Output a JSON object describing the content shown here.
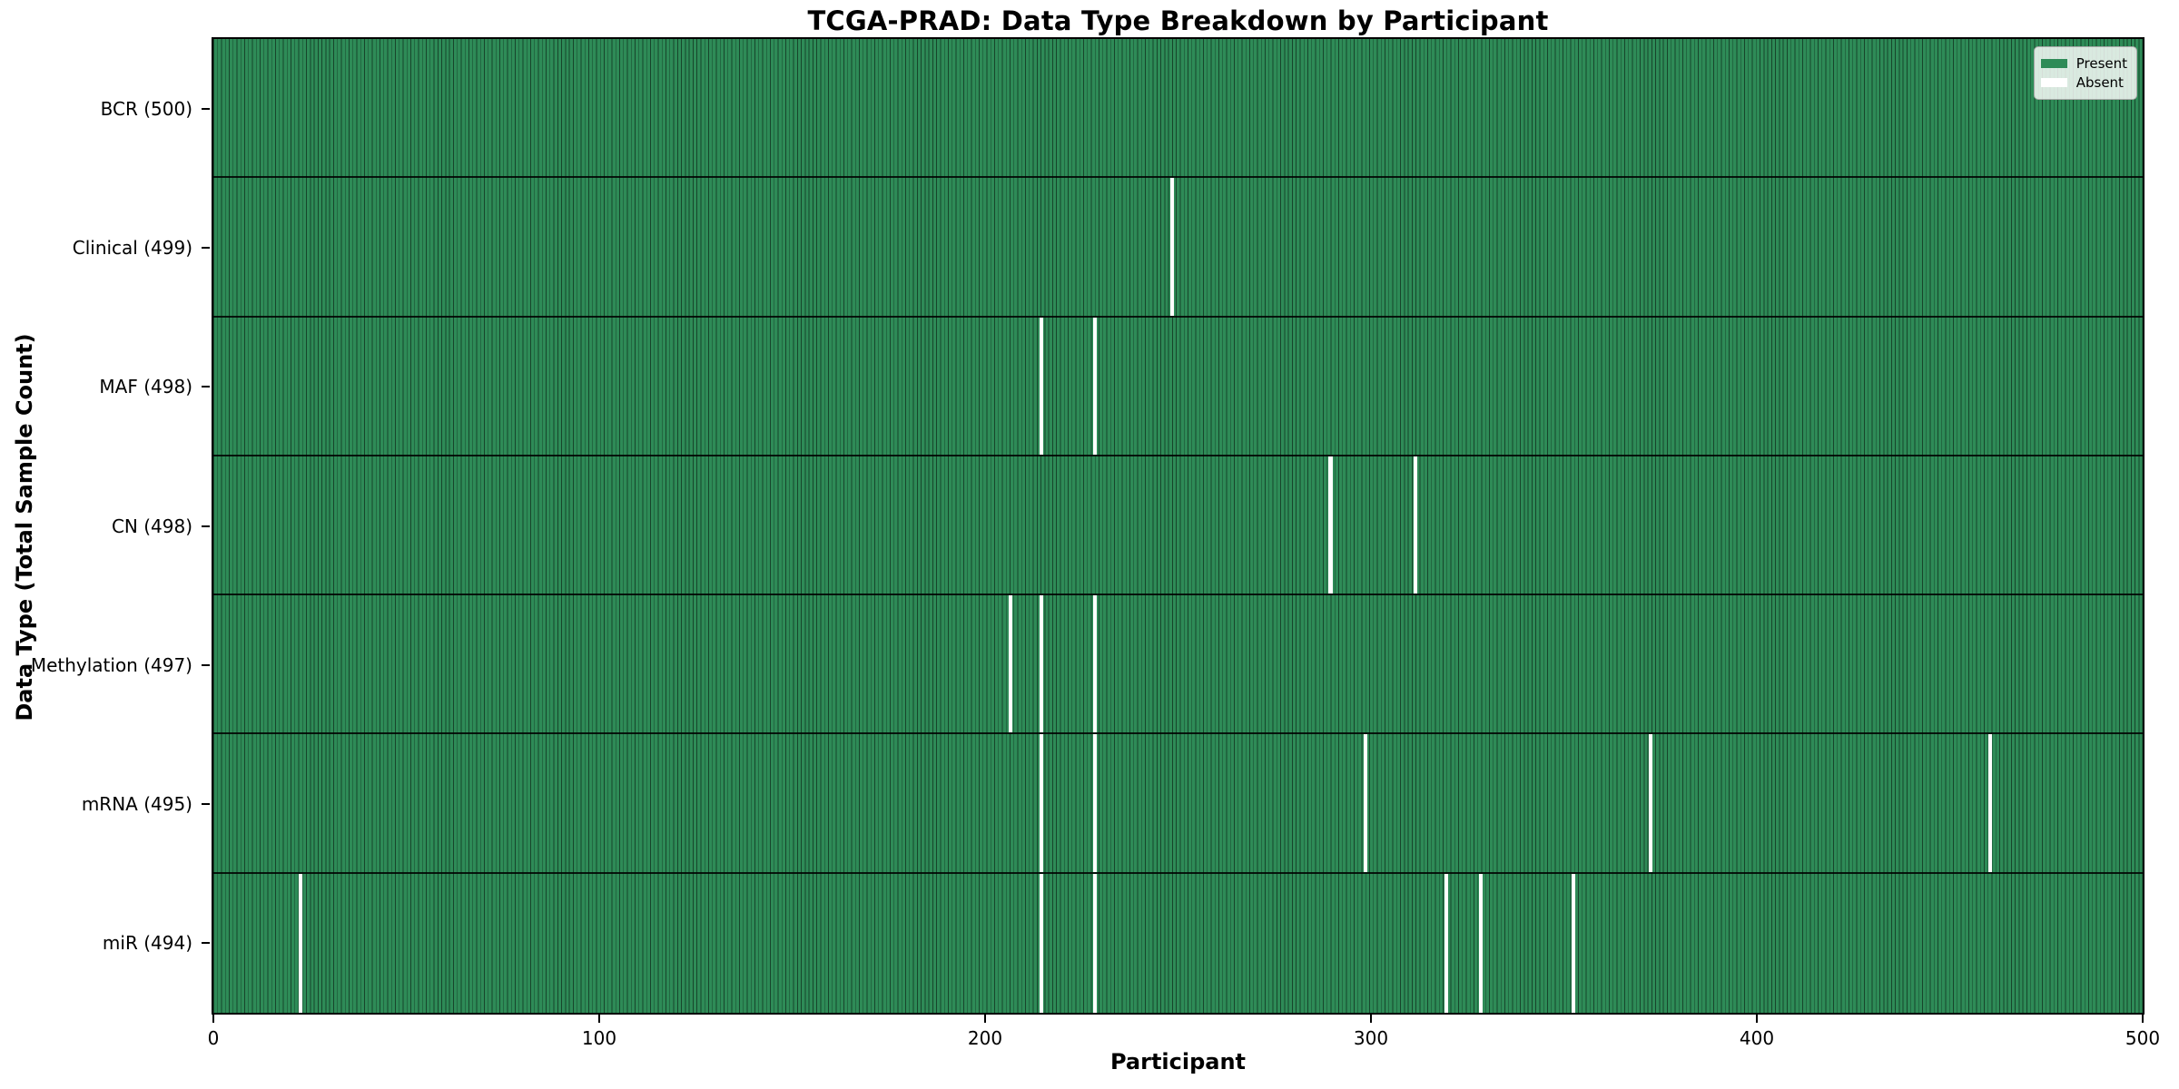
{
  "chart_data": {
    "type": "heatmap",
    "title": "TCGA-PRAD: Data Type Breakdown by Participant",
    "xlabel": "Participant",
    "ylabel": "Data Type (Total Sample Count)",
    "x_range": [
      0,
      500
    ],
    "n_participants": 500,
    "x_ticks": [
      0,
      100,
      200,
      300,
      400,
      500
    ],
    "grid": false,
    "legend_position": "upper right",
    "legend": [
      {
        "label": "Present",
        "color": "#2e8b57"
      },
      {
        "label": "Absent",
        "color": "#ffffff"
      }
    ],
    "rows": [
      {
        "name": "BCR",
        "label": "BCR (500)",
        "total": 500,
        "absent_participants": []
      },
      {
        "name": "Clinical",
        "label": "Clinical (499)",
        "total": 499,
        "absent_participants": [
          248
        ]
      },
      {
        "name": "MAF",
        "label": "MAF (498)",
        "total": 498,
        "absent_participants": [
          214,
          228
        ]
      },
      {
        "name": "CN",
        "label": "CN (498)",
        "total": 498,
        "absent_participants": [
          289,
          311
        ]
      },
      {
        "name": "Methylation",
        "label": "Methylation (497)",
        "total": 497,
        "absent_participants": [
          206,
          214,
          228
        ]
      },
      {
        "name": "mRNA",
        "label": "mRNA (495)",
        "total": 495,
        "absent_participants": [
          214,
          228,
          298,
          372,
          460
        ]
      },
      {
        "name": "miR",
        "label": "miR (494)",
        "total": 494,
        "absent_participants": [
          22,
          214,
          228,
          319,
          328,
          352
        ]
      }
    ],
    "colors": {
      "present": "#2e8b57",
      "absent": "#ffffff",
      "cell_edge": "rgba(0,0,0,0.5)",
      "row_divider": "#000000",
      "plot_border": "#000000"
    }
  }
}
